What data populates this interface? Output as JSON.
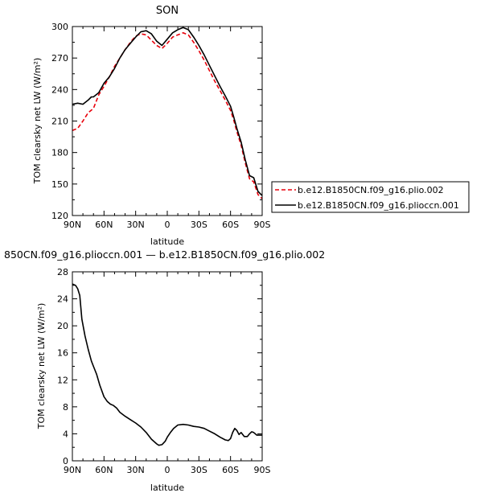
{
  "chart_data": [
    {
      "type": "line",
      "title": "SON",
      "xlabel": "latitude",
      "ylabel": "TOM clearsky net LW (W/m²)",
      "xlim": [
        -90,
        90
      ],
      "ylim": [
        120,
        300
      ],
      "x_ticks": [
        -90,
        -60,
        -30,
        0,
        30,
        60,
        90
      ],
      "x_tick_labels": [
        "90N",
        "60N",
        "30N",
        "0",
        "30S",
        "60S",
        "90S"
      ],
      "y_ticks": [
        120,
        150,
        180,
        210,
        240,
        270,
        300
      ],
      "y_tick_labels": [
        "120",
        "150",
        "180",
        "210",
        "240",
        "270",
        "300"
      ],
      "legend": "right",
      "series": [
        {
          "name": "b.e12.B1850CN.f09_g16.plio.002",
          "color": "#e8000b",
          "dash": "dashed",
          "x": [
            -90,
            -85,
            -80,
            -75,
            -70,
            -65,
            -60,
            -55,
            -50,
            -45,
            -40,
            -35,
            -30,
            -25,
            -20,
            -15,
            -10,
            -5,
            0,
            5,
            10,
            15,
            20,
            25,
            30,
            35,
            40,
            45,
            50,
            55,
            60,
            63,
            66,
            70,
            74,
            78,
            82,
            86,
            90
          ],
          "y": [
            201,
            203,
            210,
            218,
            222,
            235,
            243,
            252,
            262,
            270,
            278,
            285,
            291,
            293,
            292,
            287,
            282,
            279,
            284,
            290,
            292,
            294,
            292,
            285,
            277,
            268,
            258,
            248,
            239,
            230,
            220,
            211,
            200,
            187,
            170,
            155,
            152,
            140,
            136
          ]
        },
        {
          "name": "b.e12.B1850CN.f09_g16.plioccn.001",
          "color": "#000000",
          "dash": "solid",
          "x": [
            -90,
            -85,
            -80,
            -75,
            -72,
            -70,
            -65,
            -60,
            -55,
            -50,
            -45,
            -40,
            -35,
            -30,
            -25,
            -20,
            -15,
            -10,
            -5,
            0,
            5,
            10,
            15,
            20,
            25,
            30,
            35,
            40,
            45,
            50,
            55,
            60,
            63,
            66,
            70,
            74,
            78,
            82,
            86,
            90
          ],
          "y": [
            226,
            227,
            226,
            230,
            233,
            233,
            237,
            246,
            252,
            260,
            270,
            278,
            284,
            290,
            295,
            296,
            293,
            286,
            282,
            288,
            294,
            297,
            299,
            297,
            290,
            282,
            273,
            263,
            253,
            243,
            234,
            224,
            214,
            203,
            190,
            173,
            158,
            156,
            143,
            139
          ]
        }
      ]
    },
    {
      "type": "line",
      "title": "850CN.f09_g16.plioccn.001 — b.e12.B1850CN.f09_g16.plio.002",
      "xlabel": "latitude",
      "ylabel": "TOM clearsky net LW (W/m²)",
      "xlim": [
        -90,
        90
      ],
      "ylim": [
        0,
        28
      ],
      "x_ticks": [
        -90,
        -60,
        -30,
        0,
        30,
        60,
        90
      ],
      "x_tick_labels": [
        "90N",
        "60N",
        "30N",
        "0",
        "30S",
        "60S",
        "90S"
      ],
      "y_ticks": [
        0,
        4,
        8,
        12,
        16,
        20,
        24,
        28
      ],
      "y_tick_labels": [
        "0",
        "4",
        "8",
        "12",
        "16",
        "20",
        "24",
        "28"
      ],
      "series": [
        {
          "color": "#000000",
          "dash": "solid",
          "x": [
            -90,
            -87,
            -85,
            -83,
            -81,
            -78,
            -75,
            -72,
            -70,
            -67,
            -64,
            -60,
            -57,
            -54,
            -51,
            -48,
            -45,
            -40,
            -35,
            -30,
            -25,
            -20,
            -15,
            -10,
            -8,
            -5,
            -2,
            0,
            3,
            6,
            10,
            15,
            20,
            25,
            30,
            35,
            40,
            45,
            50,
            55,
            58,
            60,
            62,
            64,
            66,
            68,
            70,
            73,
            76,
            78,
            80,
            82,
            85,
            88,
            90
          ],
          "y": [
            26.2,
            26.0,
            25.5,
            24.5,
            21.0,
            18.5,
            16.5,
            14.8,
            14.0,
            12.8,
            11.2,
            9.5,
            8.8,
            8.4,
            8.2,
            7.8,
            7.2,
            6.6,
            6.1,
            5.6,
            5.0,
            4.2,
            3.2,
            2.5,
            2.3,
            2.4,
            2.9,
            3.5,
            4.2,
            4.8,
            5.3,
            5.4,
            5.3,
            5.1,
            5.0,
            4.8,
            4.4,
            4.0,
            3.5,
            3.1,
            3.0,
            3.3,
            4.2,
            4.8,
            4.5,
            3.9,
            4.2,
            3.6,
            3.6,
            4.0,
            4.3,
            4.2,
            3.8,
            3.8,
            3.8
          ]
        }
      ]
    }
  ]
}
